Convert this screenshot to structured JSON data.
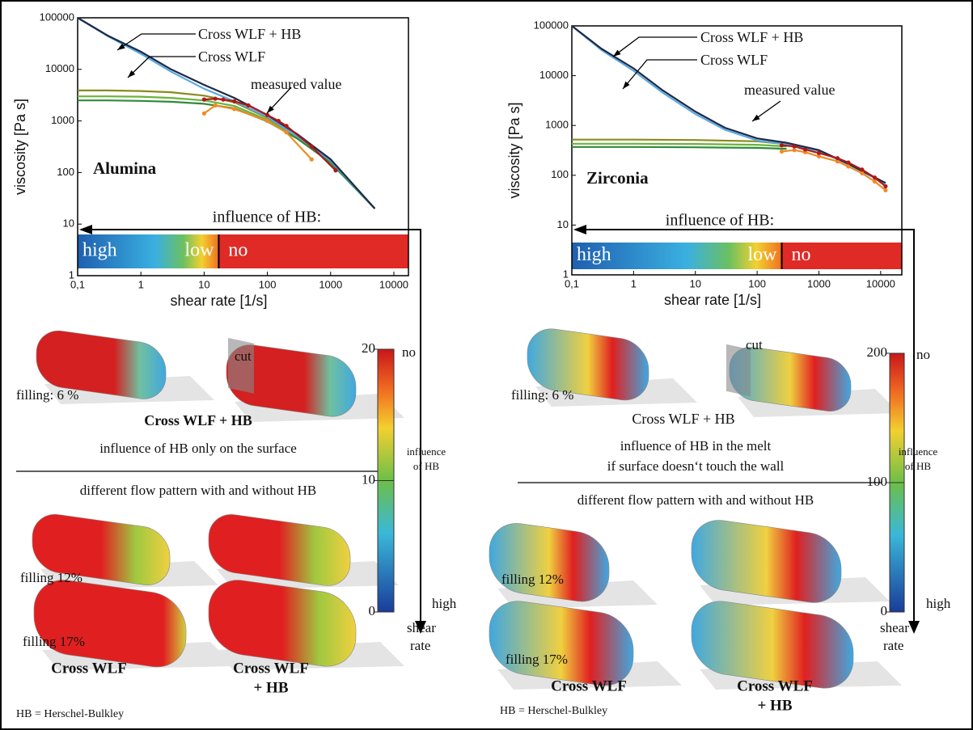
{
  "chart_data": [
    {
      "type": "line",
      "title": "Alumina",
      "xlabel": "shear rate [1/s]",
      "ylabel": "viscosity [Pa s]",
      "log_x": true,
      "log_y": true,
      "xlim": [
        0.1,
        17000
      ],
      "ylim": [
        1,
        100000
      ],
      "xticks": [
        {
          "value": 0.1,
          "label": "0,1"
        },
        1,
        10,
        100,
        1000,
        10000
      ],
      "yticks": [
        1,
        10,
        100,
        1000,
        10000,
        100000
      ],
      "series": [
        {
          "color": "#8a8a20",
          "x": [
            0.1,
            0.3,
            1,
            3,
            10,
            30,
            100,
            300,
            1000,
            5000
          ],
          "values": [
            3900,
            3900,
            3800,
            3600,
            3100,
            2300,
            1150,
            500,
            165,
            20
          ]
        },
        {
          "color": "#6cb33a",
          "x": [
            0.1,
            0.3,
            1,
            3,
            10,
            30,
            100,
            300,
            1000,
            5000
          ],
          "values": [
            3000,
            3000,
            2950,
            2800,
            2500,
            1950,
            1050,
            470,
            160,
            20
          ]
        },
        {
          "color": "#2e8b3a",
          "x": [
            0.1,
            0.3,
            1,
            3,
            10,
            30,
            100,
            300,
            1000,
            5000
          ],
          "values": [
            2500,
            2500,
            2450,
            2350,
            2150,
            1750,
            980,
            450,
            155,
            20
          ]
        },
        {
          "color": "#5aa9e6",
          "x": [
            0.1,
            0.3,
            1,
            3,
            10,
            30,
            100,
            300,
            1000,
            5000
          ],
          "values": [
            100000,
            44000,
            20000,
            9000,
            4200,
            2400,
            1200,
            500,
            170,
            20
          ]
        },
        {
          "color": "#1f2a44",
          "x": [
            0.1,
            0.3,
            1,
            3,
            10,
            30,
            100,
            300,
            1000,
            5000
          ],
          "values": [
            100000,
            45000,
            22000,
            10000,
            5000,
            2800,
            1300,
            550,
            180,
            20
          ]
        },
        {
          "color": "#f08a24",
          "x": [
            10,
            15,
            30,
            100,
            200,
            500
          ],
          "values": [
            1400,
            2000,
            1700,
            1000,
            600,
            180
          ]
        },
        {
          "color": "#b01818",
          "x": [
            10,
            15,
            20,
            30,
            50,
            100,
            150,
            200,
            500,
            1200
          ],
          "values": [
            2600,
            2700,
            2600,
            2400,
            2000,
            1300,
            1000,
            800,
            320,
            110
          ]
        }
      ],
      "annotations": [
        "Cross WLF + HB",
        "Cross WLF",
        "measured value"
      ],
      "influence_title": "influence of HB:",
      "influence_labels": [
        "high",
        "low",
        "no"
      ],
      "hb_threshold": 17
    },
    {
      "type": "line",
      "title": "Zirconia",
      "xlabel": "shear rate [1/s]",
      "ylabel": "viscosity [Pa s]",
      "log_x": true,
      "log_y": true,
      "xlim": [
        0.1,
        22000
      ],
      "ylim": [
        1,
        100000
      ],
      "xticks": [
        {
          "value": 0.1,
          "label": "0,1"
        },
        1,
        10,
        100,
        1000,
        10000
      ],
      "yticks": [
        1,
        10,
        100,
        1000,
        10000,
        100000
      ],
      "series": [
        {
          "color": "#8a8a20",
          "x": [
            0.1,
            1,
            10,
            100,
            300
          ],
          "values": [
            520,
            520,
            510,
            480,
            420
          ]
        },
        {
          "color": "#6cb33a",
          "x": [
            0.1,
            1,
            10,
            100,
            300
          ],
          "values": [
            430,
            430,
            425,
            410,
            380
          ]
        },
        {
          "color": "#2e8b3a",
          "x": [
            0.1,
            1,
            10,
            100,
            300
          ],
          "values": [
            370,
            370,
            365,
            355,
            340
          ]
        },
        {
          "color": "#5aa9e6",
          "x": [
            0.1,
            0.3,
            1,
            3,
            10,
            30,
            100,
            300,
            1000,
            3000,
            12000
          ],
          "values": [
            100000,
            33000,
            12500,
            4500,
            1700,
            820,
            500,
            420,
            310,
            165,
            68
          ]
        },
        {
          "color": "#1f2a44",
          "x": [
            0.1,
            0.3,
            1,
            3,
            10,
            30,
            100,
            300,
            1000,
            3000,
            12000
          ],
          "values": [
            100000,
            35000,
            14000,
            5000,
            1900,
            900,
            550,
            450,
            320,
            170,
            70
          ]
        },
        {
          "color": "#f08a24",
          "x": [
            250,
            400,
            600,
            1000,
            2000,
            3000,
            5000,
            8000,
            12000
          ],
          "values": [
            300,
            320,
            290,
            240,
            190,
            150,
            110,
            75,
            50
          ]
        },
        {
          "color": "#b01818",
          "x": [
            250,
            400,
            600,
            1000,
            2000,
            3000,
            5000,
            8000,
            12000
          ],
          "values": [
            400,
            380,
            330,
            280,
            220,
            180,
            130,
            90,
            60
          ]
        }
      ],
      "annotations": [
        "Cross WLF + HB",
        "Cross WLF",
        "measured value"
      ],
      "influence_title": "influence of HB:",
      "influence_labels": [
        "high",
        "low",
        "no"
      ],
      "hb_threshold": 250
    }
  ],
  "panels": [
    {
      "filling_labels": [
        "filling: 6 %",
        "filling 12%",
        "filling 17%"
      ],
      "cut": "cut",
      "caption": "Cross WLF + HB",
      "note": [
        "influence of HB only on the surface"
      ],
      "divider_text": "different flow pattern with and without HB",
      "bottom_labels": [
        [
          "Cross WLF"
        ],
        [
          "Cross WLF",
          "+ HB"
        ]
      ],
      "footnote": "HB = Herschel-Bulkley",
      "colorbar": {
        "ticks": [
          0,
          10,
          20
        ],
        "top": "no",
        "mid": [
          "influence",
          "of HB"
        ],
        "bottom": "high",
        "unit": [
          "shear",
          "rate"
        ]
      }
    },
    {
      "filling_labels": [
        "filling: 6 %",
        "filling 12%",
        "filling 17%"
      ],
      "cut": "cut",
      "caption": "Cross WLF + HB",
      "note": [
        "influence of HB in the melt",
        "if surface doesn‘t touch the wall"
      ],
      "divider_text": "different flow pattern with and without HB",
      "bottom_labels": [
        [
          "Cross WLF"
        ],
        [
          "Cross WLF",
          "+ HB"
        ]
      ],
      "footnote": "HB = Herschel-Bulkley",
      "colorbar": {
        "ticks": [
          0,
          100,
          200
        ],
        "top": "no",
        "mid": [
          "influence",
          "of HB"
        ],
        "bottom": "high",
        "unit": [
          "shear",
          "rate"
        ]
      }
    }
  ]
}
